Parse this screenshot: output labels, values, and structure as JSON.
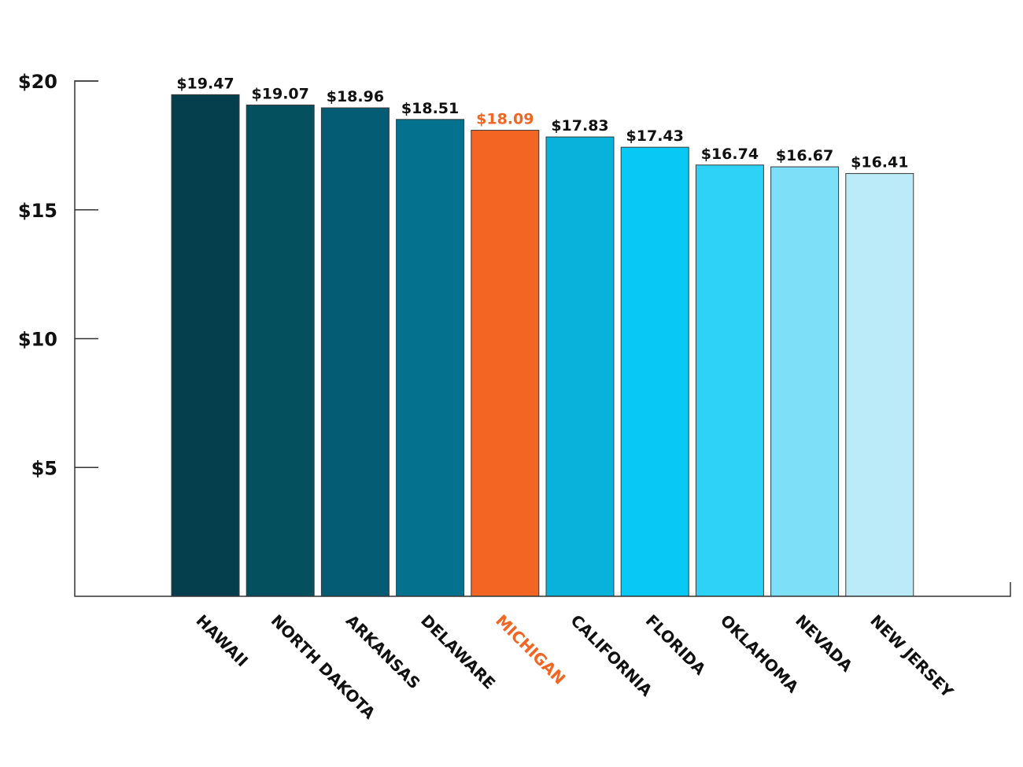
{
  "chart_data": {
    "type": "bar",
    "categories": [
      "HAWAII",
      "NORTH DAKOTA",
      "ARKANSAS",
      "DELAWARE",
      "MICHIGAN",
      "CALIFORNIA",
      "FLORIDA",
      "OKLAHOMA",
      "NEVADA",
      "NEW JERSEY"
    ],
    "values": [
      19.47,
      19.07,
      18.96,
      18.51,
      18.09,
      17.83,
      17.43,
      16.74,
      16.67,
      16.41
    ],
    "value_labels": [
      "$19.47",
      "$19.07",
      "$18.96",
      "$18.51",
      "$18.09",
      "$17.83",
      "$17.43",
      "$16.74",
      "$16.67",
      "$16.41"
    ],
    "bar_colors": [
      "#053f4d",
      "#04505f",
      "#045b74",
      "#04728f",
      "#f26522",
      "#09b2da",
      "#08c8f5",
      "#2ed2f7",
      "#7ddff8",
      "#bbeaf8"
    ],
    "highlight_index": 4,
    "highlight_color": "#f26522",
    "text_color": "#111111",
    "ylim": [
      0,
      20
    ],
    "yticks": [
      5,
      10,
      15,
      20
    ],
    "ytick_labels": [
      "$5",
      "$10",
      "$15",
      "$20"
    ],
    "title": "",
    "xlabel": "",
    "ylabel": "",
    "grid": false,
    "legend": "none"
  }
}
